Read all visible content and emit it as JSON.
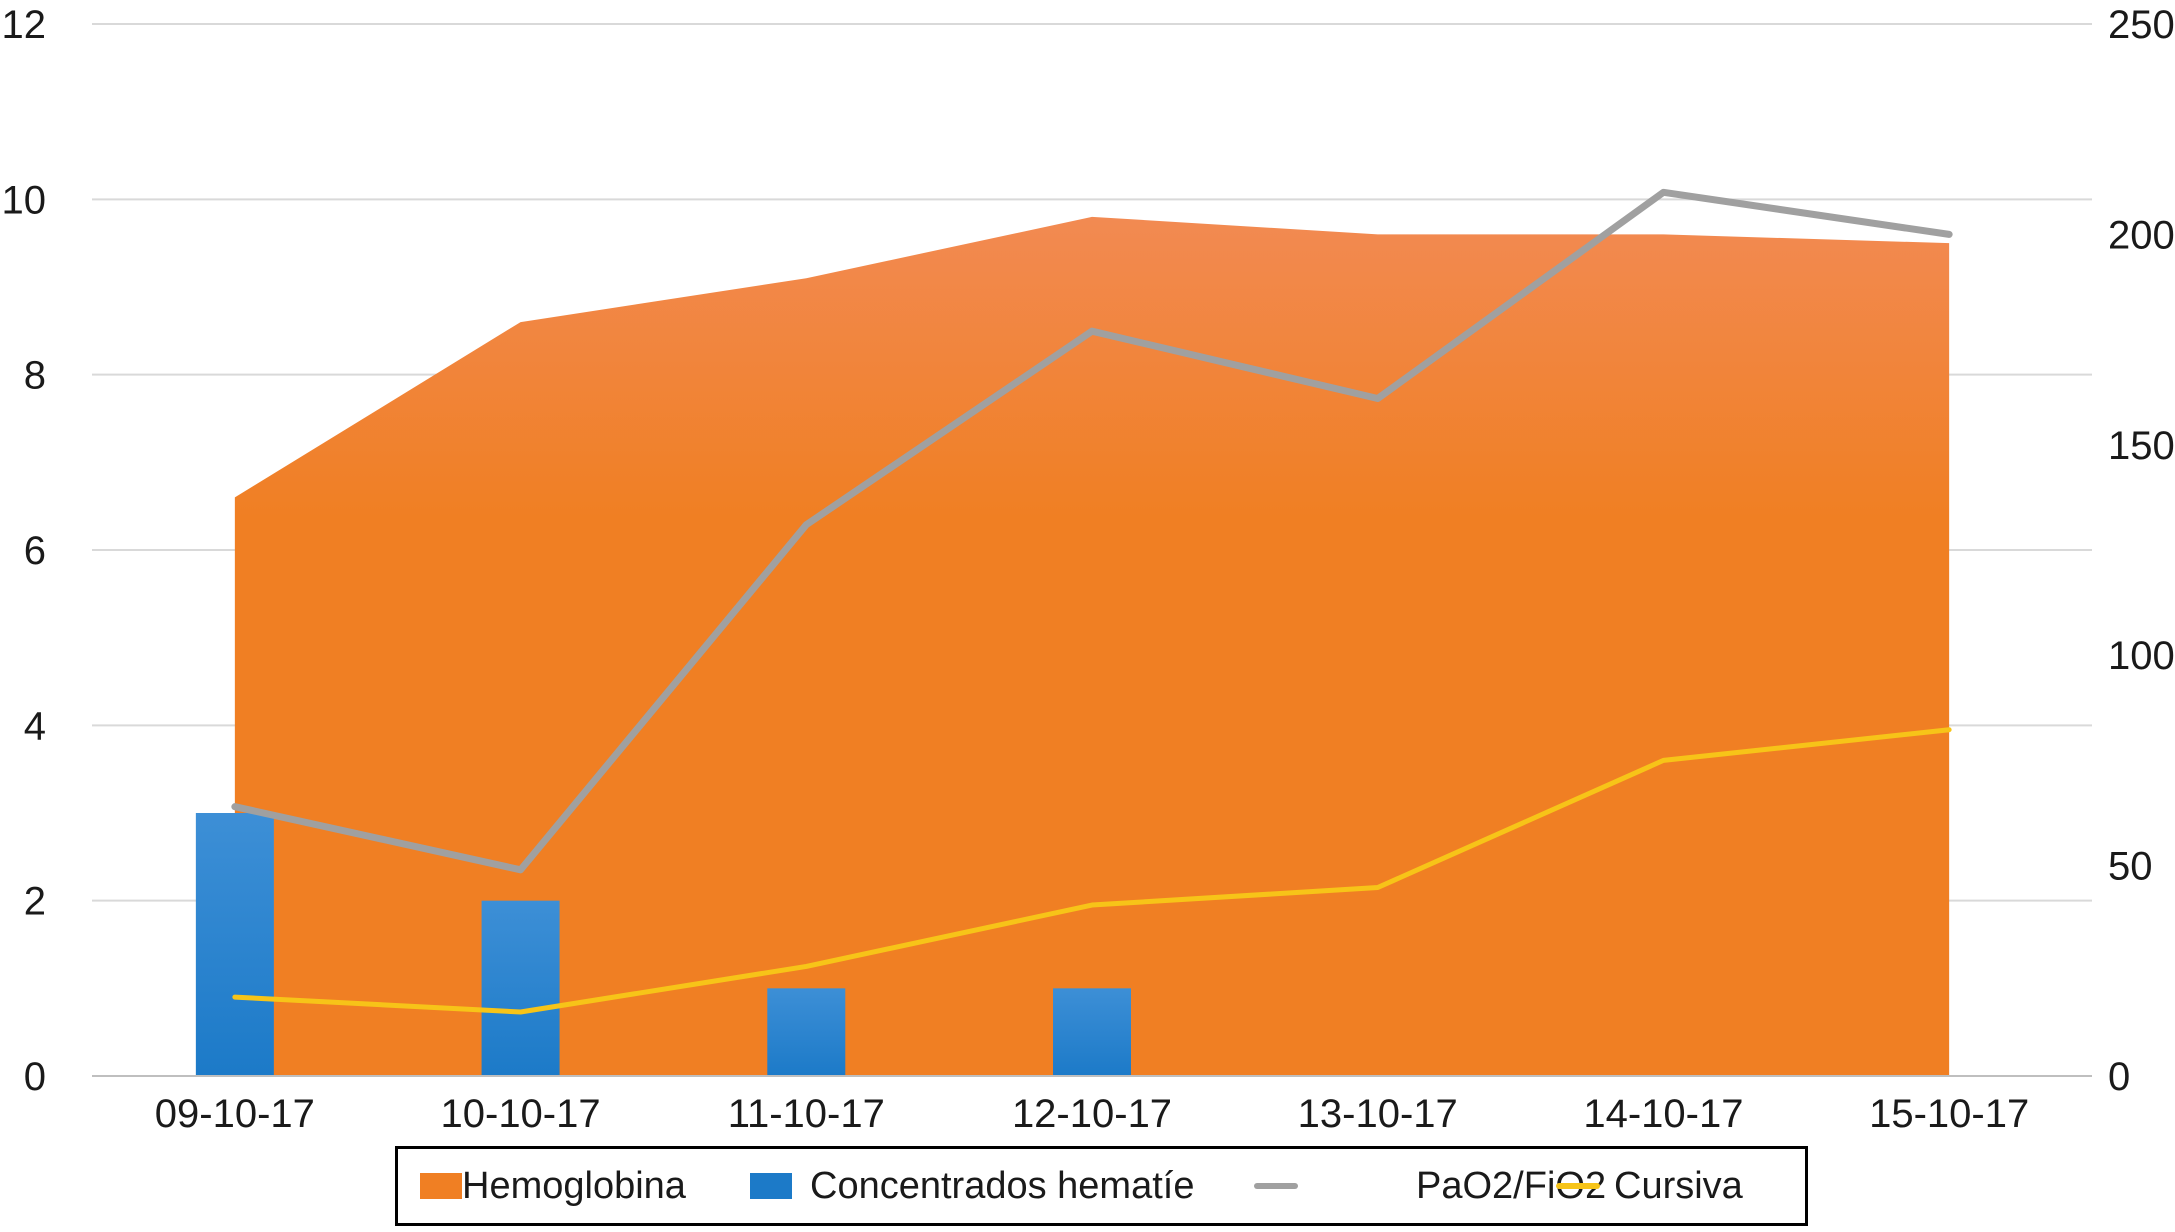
{
  "chart_data": {
    "type": "combo",
    "categories": [
      "09-10-17",
      "10-10-17",
      "11-10-17",
      "12-10-17",
      "13-10-17",
      "14-10-17",
      "15-10-17"
    ],
    "y_left": {
      "ticks": [
        "0",
        "2",
        "4",
        "6",
        "8",
        "10",
        "12"
      ],
      "ylim": [
        0,
        12
      ]
    },
    "y_right": {
      "ticks": [
        "0",
        "50",
        "100",
        "150",
        "200",
        "250"
      ],
      "ylim": [
        0,
        250
      ]
    },
    "grid": true,
    "legend_position": "bottom",
    "series": [
      {
        "name": "Hemoglobina",
        "type": "area",
        "axis": "left",
        "color": "#f07f23",
        "values": [
          6.6,
          8.6,
          9.1,
          9.8,
          9.6,
          9.6,
          9.5
        ]
      },
      {
        "name": "Concentrados hematíe",
        "type": "bar",
        "axis": "left",
        "color": "#1c7ac8",
        "values": [
          3,
          2,
          1,
          1,
          0,
          0,
          0
        ]
      },
      {
        "name": "PaO2/FiO2",
        "type": "line",
        "axis": "right",
        "color": "#a0a0a0",
        "values": [
          64,
          49,
          131,
          177,
          161,
          210,
          200
        ]
      },
      {
        "name": "Cursiva",
        "type": "line",
        "axis": "left",
        "color": "#f7c418",
        "values": [
          0.9,
          0.73,
          1.25,
          1.95,
          2.15,
          3.6,
          3.95
        ]
      }
    ]
  }
}
